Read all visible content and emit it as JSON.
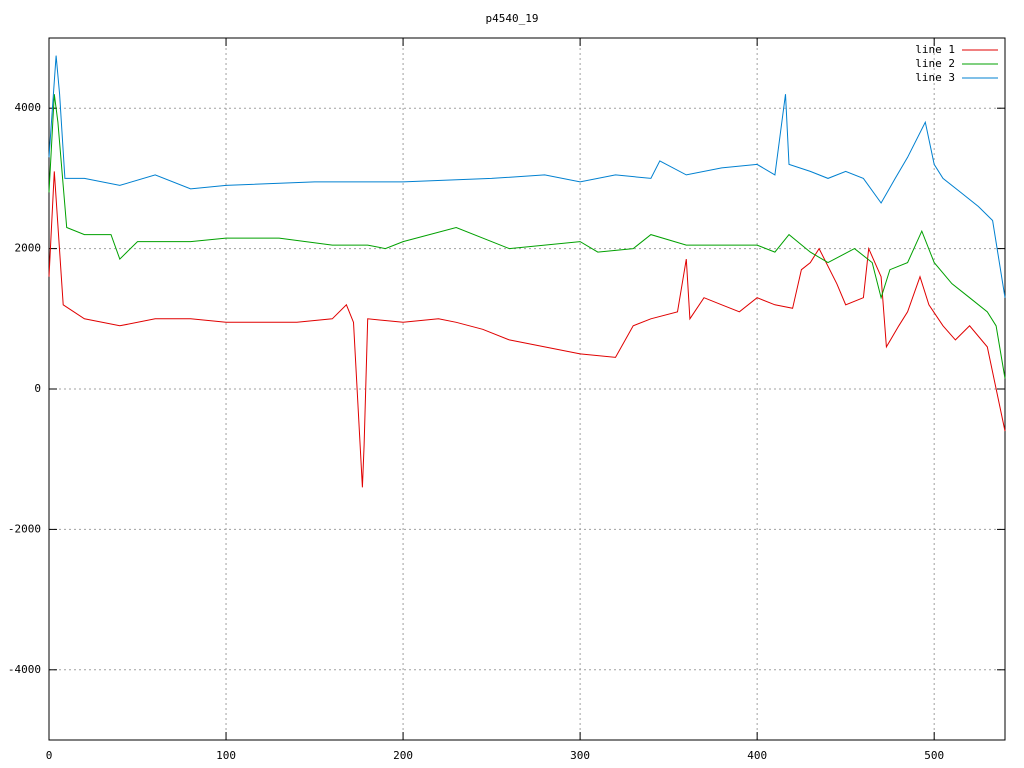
{
  "chart_data": {
    "type": "line",
    "title": "p4540_19",
    "xlim": [
      0,
      540
    ],
    "xticks": [
      0,
      100,
      200,
      300,
      400,
      500
    ],
    "ylim": [
      -5000,
      5000
    ],
    "yticks": [
      -4000,
      -2000,
      0,
      2000,
      4000
    ],
    "grid": true,
    "legend": "top right",
    "series": [
      {
        "name": "line 1",
        "color": "#e00000",
        "x": [
          0,
          3,
          8,
          20,
          40,
          60,
          80,
          100,
          120,
          140,
          160,
          168,
          172,
          177,
          178,
          180,
          200,
          220,
          230,
          245,
          260,
          280,
          300,
          320,
          330,
          340,
          355,
          360,
          362,
          370,
          380,
          390,
          400,
          410,
          420,
          425,
          430,
          435,
          445,
          450,
          460,
          463,
          470,
          473,
          480,
          485,
          492,
          497,
          505,
          512,
          520,
          530,
          540
        ],
        "values": [
          1600,
          3100,
          1200,
          1000,
          900,
          1000,
          1000,
          950,
          950,
          950,
          1000,
          1200,
          950,
          -1400,
          -800,
          1000,
          950,
          1000,
          950,
          850,
          700,
          600,
          500,
          450,
          900,
          1000,
          1100,
          1850,
          1000,
          1300,
          1200,
          1100,
          1300,
          1200,
          1150,
          1700,
          1800,
          2000,
          1500,
          1200,
          1300,
          2000,
          1600,
          600,
          900,
          1100,
          1600,
          1200,
          900,
          700,
          900,
          600,
          -600
        ]
      },
      {
        "name": "line 2",
        "color": "#00a000",
        "x": [
          0,
          3,
          5,
          10,
          20,
          35,
          40,
          50,
          80,
          100,
          130,
          160,
          180,
          190,
          200,
          230,
          260,
          300,
          310,
          330,
          340,
          360,
          400,
          410,
          418,
          430,
          440,
          455,
          465,
          470,
          475,
          485,
          493,
          500,
          510,
          520,
          530,
          535,
          540
        ],
        "values": [
          2800,
          4200,
          3800,
          2300,
          2200,
          2200,
          1850,
          2100,
          2100,
          2150,
          2150,
          2050,
          2050,
          2000,
          2100,
          2300,
          2000,
          2100,
          1950,
          2000,
          2200,
          2050,
          2050,
          1950,
          2200,
          1950,
          1800,
          2000,
          1800,
          1300,
          1700,
          1800,
          2250,
          1800,
          1500,
          1300,
          1100,
          900,
          150
        ]
      },
      {
        "name": "line 3",
        "color": "#0080d0",
        "x": [
          0,
          4,
          6,
          9,
          20,
          40,
          60,
          80,
          100,
          150,
          200,
          250,
          280,
          300,
          320,
          340,
          345,
          360,
          380,
          400,
          410,
          416,
          418,
          430,
          440,
          450,
          460,
          470,
          478,
          485,
          495,
          500,
          505,
          515,
          525,
          533,
          540
        ],
        "values": [
          3300,
          4750,
          4200,
          3000,
          3000,
          2900,
          3050,
          2850,
          2900,
          2950,
          2950,
          3000,
          3050,
          2950,
          3050,
          3000,
          3250,
          3050,
          3150,
          3200,
          3050,
          4200,
          3200,
          3100,
          3000,
          3100,
          3000,
          2650,
          3000,
          3300,
          3800,
          3200,
          3000,
          2800,
          2600,
          2400,
          1300
        ]
      }
    ]
  }
}
